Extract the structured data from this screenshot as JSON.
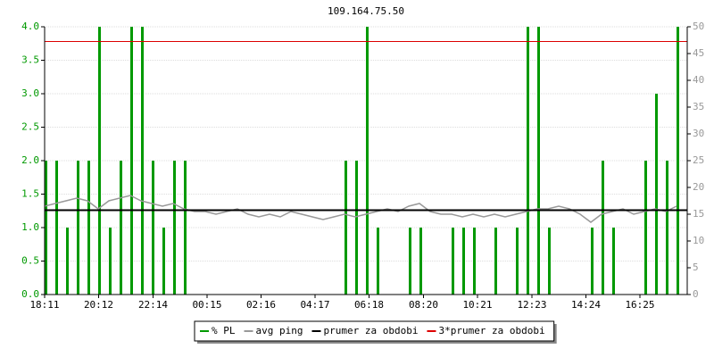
{
  "chart_data": {
    "type": "smokeping",
    "title": "109.164.75.50",
    "x": [
      "18:11",
      "18:35",
      "18:59",
      "19:23",
      "19:47",
      "20:11",
      "20:35",
      "20:59",
      "21:23",
      "21:47",
      "22:11",
      "22:35",
      "22:59",
      "23:23",
      "23:47",
      "00:11",
      "00:35",
      "00:59",
      "01:23",
      "01:47",
      "02:11",
      "02:35",
      "02:59",
      "03:23",
      "03:47",
      "04:11",
      "04:35",
      "04:59",
      "05:23",
      "05:47",
      "06:11",
      "06:35",
      "06:59",
      "07:23",
      "07:47",
      "08:11",
      "08:35",
      "08:59",
      "09:23",
      "09:47",
      "10:11",
      "10:35",
      "10:59",
      "11:23",
      "11:47",
      "12:11",
      "12:35",
      "12:59",
      "13:23",
      "13:47",
      "14:11",
      "14:35",
      "14:59",
      "15:23",
      "15:47",
      "16:11",
      "16:35",
      "16:59",
      "17:23",
      "17:47"
    ],
    "xlim": [
      "18:11",
      "18:11"
    ],
    "xticks": [
      "18:11",
      "20:12",
      "22:14",
      "00:15",
      "02:16",
      "04:17",
      "06:18",
      "08:20",
      "10:21",
      "12:23",
      "14:24",
      "16:25"
    ],
    "ylim": [
      0,
      4
    ],
    "yticks": [
      {
        "value": 0,
        "label": "0.0"
      },
      {
        "value": 0.5,
        "label": "0.5"
      },
      {
        "value": 1,
        "label": "1.0"
      },
      {
        "value": 1.5,
        "label": "1.5"
      },
      {
        "value": 2,
        "label": "2.0"
      },
      {
        "value": 2.5,
        "label": "2.5"
      },
      {
        "value": 3,
        "label": "3.0"
      },
      {
        "value": 3.5,
        "label": "3.5"
      },
      {
        "value": 4,
        "label": "4.0"
      }
    ],
    "y2lim": [
      0,
      50
    ],
    "y2ticks": [
      0,
      5,
      10,
      15,
      20,
      25,
      30,
      35,
      40,
      45,
      50
    ],
    "grid": true,
    "series": [
      {
        "name": "% PL",
        "color": "#009900",
        "axis": "y",
        "style": "spikes",
        "values": [
          2,
          2,
          1,
          2,
          2,
          4,
          1,
          2,
          4,
          4,
          2,
          1,
          2,
          2,
          0,
          0,
          0,
          0,
          0,
          0,
          0,
          0,
          0,
          0,
          0,
          0,
          0,
          0,
          2,
          2,
          4,
          1,
          0,
          0,
          1,
          1,
          0,
          0,
          1,
          1,
          1,
          0,
          1,
          0,
          1,
          4,
          4,
          1,
          0,
          0,
          0,
          1,
          2,
          1,
          0,
          0,
          2,
          3,
          2,
          4
        ]
      },
      {
        "name": "avg ping",
        "color": "#999999",
        "axis": "y2",
        "style": "line",
        "values": [
          16.5,
          17,
          17.5,
          18,
          17.5,
          16,
          17.5,
          18,
          18.5,
          17.5,
          17,
          16.5,
          17,
          16,
          15.5,
          15.5,
          15,
          15.5,
          16,
          15,
          14.5,
          15,
          14.5,
          15.5,
          15,
          14.5,
          14,
          14.5,
          15,
          14.5,
          15,
          15.5,
          16,
          15.5,
          16.5,
          17,
          15.5,
          15,
          15,
          14.5,
          15,
          14.5,
          15,
          14.5,
          15,
          15.5,
          16,
          16,
          16.5,
          16,
          15,
          13.5,
          15,
          15.5,
          16,
          15,
          15.5,
          16,
          15.5,
          16.5
        ]
      }
    ],
    "reference_lines": [
      {
        "name": "prumer za obdobi",
        "color": "#000000",
        "axis": "y2",
        "value": 15.75
      },
      {
        "name": "3*prumer za obdobi",
        "color": "#dd0000",
        "axis": "y2",
        "value": 47.25
      }
    ]
  }
}
